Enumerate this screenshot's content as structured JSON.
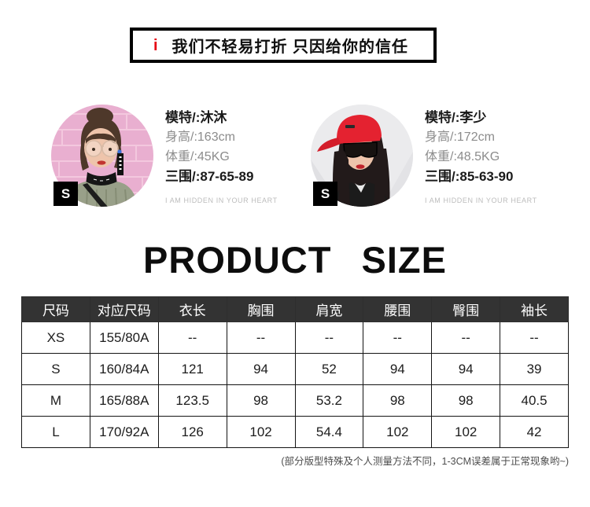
{
  "banner": {
    "icon": "i",
    "text": "我们不轻易打折 只因给你的信任"
  },
  "models": [
    {
      "badge": "S",
      "name": "模特/:沐沐",
      "height": "身高/:163cm",
      "weight": "体重/:45KG",
      "measurements": "三围/:87-65-89",
      "caption": "I AM HIDDEN IN YOUR HEART"
    },
    {
      "badge": "S",
      "name": "模特/:李少",
      "height": "身高/:172cm",
      "weight": "体重/:48.5KG",
      "measurements": "三围/:85-63-90",
      "caption": "I AM HIDDEN IN YOUR HEART"
    }
  ],
  "size_section": {
    "title": "PRODUCT SIZE",
    "note": "(部分版型特殊及个人测量方法不同，1-3CM误差属于正常现象哟~)"
  },
  "size_table": {
    "headers": [
      "尺码",
      "对应尺码",
      "衣长",
      "胸围",
      "肩宽",
      "腰围",
      "臀围",
      "袖长"
    ],
    "rows": [
      [
        "XS",
        "155/80A",
        "--",
        "--",
        "--",
        "--",
        "--",
        "--"
      ],
      [
        "S",
        "160/84A",
        "121",
        "94",
        "52",
        "94",
        "94",
        "39"
      ],
      [
        "M",
        "165/88A",
        "123.5",
        "98",
        "53.2",
        "98",
        "98",
        "40.5"
      ],
      [
        "L",
        "170/92A",
        "126",
        "102",
        "54.4",
        "102",
        "102",
        "42"
      ]
    ]
  },
  "colors": {
    "accent_red": "#e60012",
    "table_header_bg": "#333333",
    "table_border": "#141414"
  }
}
